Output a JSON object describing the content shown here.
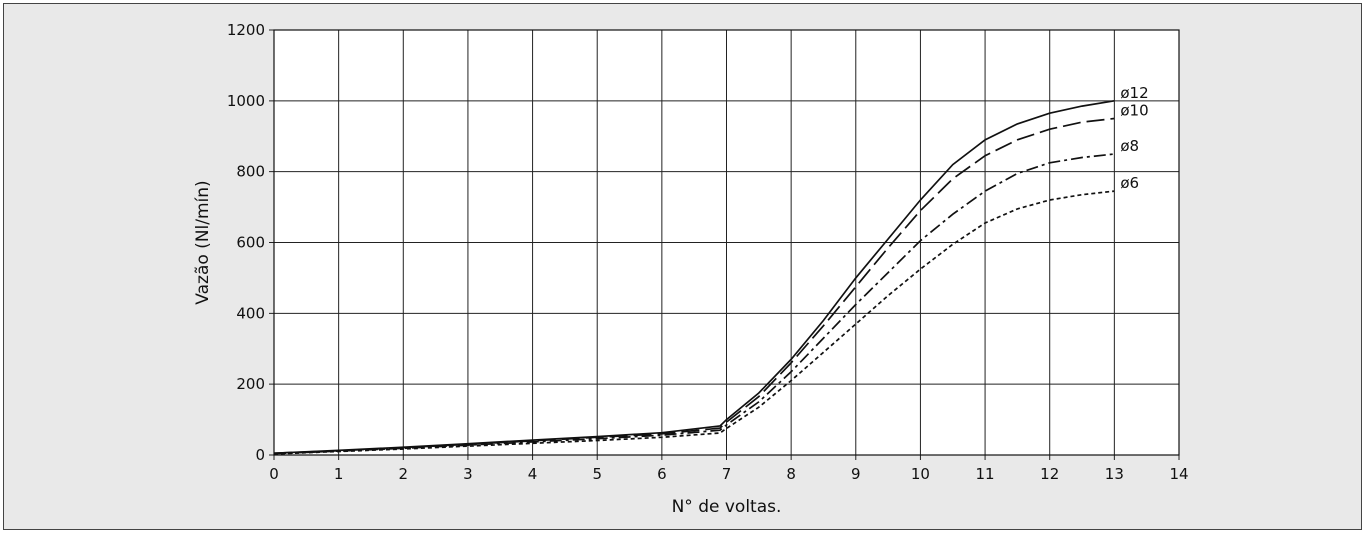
{
  "chart_data": {
    "type": "line",
    "title": "",
    "xlabel": "N° de voltas.",
    "ylabel": "Vazão (Nl/mín)",
    "xlim": [
      0,
      14
    ],
    "ylim": [
      0,
      1200
    ],
    "xticks": [
      0,
      1,
      2,
      3,
      4,
      5,
      6,
      7,
      8,
      9,
      10,
      11,
      12,
      13,
      14
    ],
    "yticks": [
      0,
      200,
      400,
      600,
      800,
      1000,
      1200
    ],
    "xtick_labels": [
      "0",
      "1",
      "2",
      "3",
      "4",
      "5",
      "6",
      "7",
      "8",
      "9",
      "10",
      "11",
      "12",
      "13",
      "14"
    ],
    "ytick_labels": [
      "0",
      "200",
      "400",
      "600",
      "800",
      "1000",
      "1200"
    ],
    "grid": true,
    "legend": "inline labels at right end of each curve",
    "series": [
      {
        "name": "ø12",
        "line_style": "solid",
        "x": [
          0,
          1,
          2,
          3,
          4,
          5,
          6,
          6.9,
          7,
          7.5,
          8,
          8.5,
          9,
          9.5,
          10,
          10.5,
          11,
          11.5,
          12,
          12.5,
          13
        ],
        "y": [
          5,
          13,
          22,
          32,
          42,
          52,
          63,
          82,
          100,
          175,
          270,
          380,
          500,
          610,
          720,
          820,
          890,
          935,
          965,
          985,
          1000
        ]
      },
      {
        "name": "ø10",
        "line_style": "longdash",
        "x": [
          0,
          1,
          2,
          3,
          4,
          5,
          6,
          6.9,
          7,
          7.5,
          8,
          8.5,
          9,
          9.5,
          10,
          10.5,
          11,
          11.5,
          12,
          12.5,
          13
        ],
        "y": [
          5,
          12,
          21,
          30,
          40,
          50,
          60,
          76,
          93,
          165,
          260,
          365,
          475,
          585,
          690,
          780,
          845,
          890,
          920,
          940,
          950
        ]
      },
      {
        "name": "ø8",
        "line_style": "dashdot",
        "x": [
          0,
          1,
          2,
          3,
          4,
          5,
          6,
          6.9,
          7,
          7.5,
          8,
          8.5,
          9,
          9.5,
          10,
          10.5,
          11,
          11.5,
          12,
          12.5,
          13
        ],
        "y": [
          4,
          11,
          19,
          28,
          37,
          46,
          56,
          70,
          85,
          150,
          235,
          330,
          425,
          515,
          605,
          680,
          745,
          795,
          825,
          840,
          850
        ]
      },
      {
        "name": "ø6",
        "line_style": "dotted",
        "x": [
          0,
          1,
          2,
          3,
          4,
          5,
          6,
          6.9,
          7,
          7.5,
          8,
          8.5,
          9,
          9.5,
          10,
          10.5,
          11,
          11.5,
          12,
          12.5,
          13
        ],
        "y": [
          3,
          10,
          17,
          25,
          33,
          41,
          50,
          62,
          75,
          135,
          210,
          290,
          370,
          450,
          525,
          595,
          655,
          695,
          720,
          735,
          745
        ]
      }
    ]
  }
}
